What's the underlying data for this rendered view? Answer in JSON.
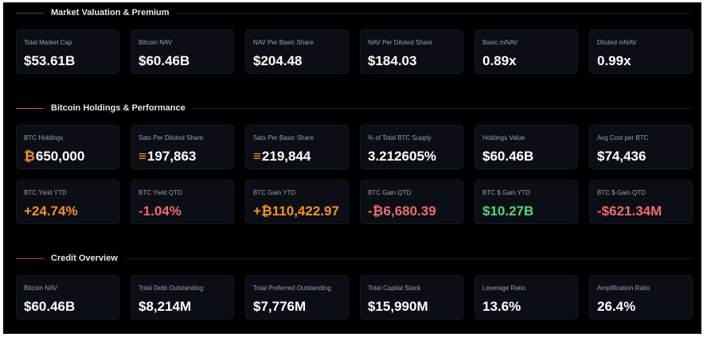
{
  "colors": {
    "orange": "#f7931a",
    "red": "#f06b6b",
    "green": "#4cd97b",
    "section1": "#3a4770",
    "section2": "#c65a22",
    "section3": "#b83a3a"
  },
  "sections": [
    {
      "title": "Market Valuation & Premium",
      "rows": [
        [
          {
            "label": "Total Market Cap",
            "value": "$53.61B"
          },
          {
            "label": "Bitcoin NAV",
            "value": "$60.46B"
          },
          {
            "label": "NAV Per Basic Share",
            "value": "$204.48"
          },
          {
            "label": "NAV Per Diluted Share",
            "value": "$184.03"
          },
          {
            "label": "Basic mNAV",
            "value": "0.89x"
          },
          {
            "label": "Diluted mNAV",
            "value": "0.99x"
          }
        ]
      ]
    },
    {
      "title": "Bitcoin Holdings & Performance",
      "rows": [
        [
          {
            "label": "BTC Holdings",
            "value": "650,000",
            "icon": "bitcoin-icon"
          },
          {
            "label": "Sats Per Diluted Share",
            "value": "197,863",
            "icon": "sats-icon"
          },
          {
            "label": "Sats Per Basic Share",
            "value": "219,844",
            "icon": "sats-icon"
          },
          {
            "label": "% of Total BTC Supply",
            "value": "3.212605%"
          },
          {
            "label": "Holdings Value",
            "value": "$60.46B"
          },
          {
            "label": "Avg Cost per BTC",
            "value": "$74,436"
          }
        ],
        [
          {
            "label": "BTC Yield YTD",
            "value": "+24.74%",
            "tone": "orange"
          },
          {
            "label": "BTC Yield QTD",
            "value": "-1.04%",
            "tone": "red"
          },
          {
            "label": "BTC Gain YTD",
            "value": "+₿110,422.97",
            "tone": "orange"
          },
          {
            "label": "BTC Gain QTD",
            "value": "-₿6,680.39",
            "tone": "red"
          },
          {
            "label": "BTC $ Gain YTD",
            "value": "$10.27B",
            "tone": "green"
          },
          {
            "label": "BTC $ Gain QTD",
            "value": "-$621.34M",
            "tone": "red"
          }
        ]
      ]
    },
    {
      "title": "Credit Overview",
      "rows": [
        [
          {
            "label": "Bitcoin NAV",
            "value": "$60.46B"
          },
          {
            "label": "Total Debt Outstanding",
            "value": "$8,214M"
          },
          {
            "label": "Total Preferred Outstanding",
            "value": "$7,776M"
          },
          {
            "label": "Total Capital Stack",
            "value": "$15,990M"
          },
          {
            "label": "Leverage Ratio",
            "value": "13.6%"
          },
          {
            "label": "Amplification Ratio",
            "value": "26.4%"
          }
        ]
      ]
    }
  ]
}
